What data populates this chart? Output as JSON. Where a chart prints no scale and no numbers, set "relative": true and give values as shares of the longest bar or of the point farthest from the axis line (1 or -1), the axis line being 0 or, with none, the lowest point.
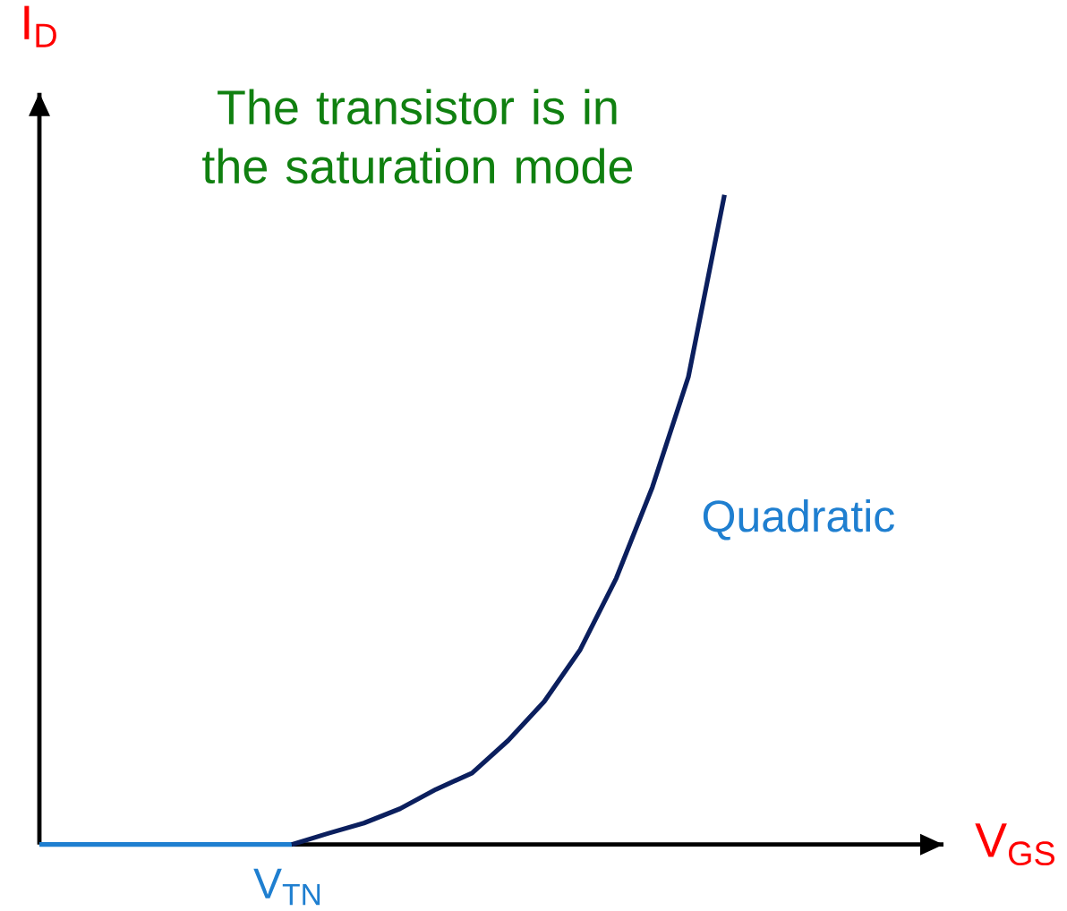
{
  "chart_data": {
    "type": "line",
    "relative": true,
    "xlabel": "V$_{GS}$",
    "ylabel": "I$_{D}$",
    "marker": "none",
    "line_style": "solid",
    "categories": [
      null,
      null,
      null,
      null,
      null,
      null,
      null,
      null,
      null,
      null,
      null,
      null,
      null,
      null,
      null,
      null,
      null,
      null,
      null,
      null
    ],
    "series": [
      {
        "color": "#1f7fd0",
        "values": [
          0,
          0,
          0,
          0,
          0,
          0,
          0,
          0,
          null,
          null,
          null,
          null,
          null,
          null,
          null,
          null,
          null,
          null,
          null,
          null
        ]
      },
      {
        "color": "#0b1f5e",
        "values": [
          null,
          null,
          null,
          null,
          null,
          null,
          null,
          0,
          0.017,
          0.033,
          0.055,
          0.085,
          0.11,
          0.16,
          0.22,
          0.3,
          0.41,
          0.55,
          0.72,
          1
        ]
      }
    ],
    "annotations": [
      "The transistor is in the saturation mode",
      "Quadratic",
      "V$_{TN}$"
    ]
  }
}
